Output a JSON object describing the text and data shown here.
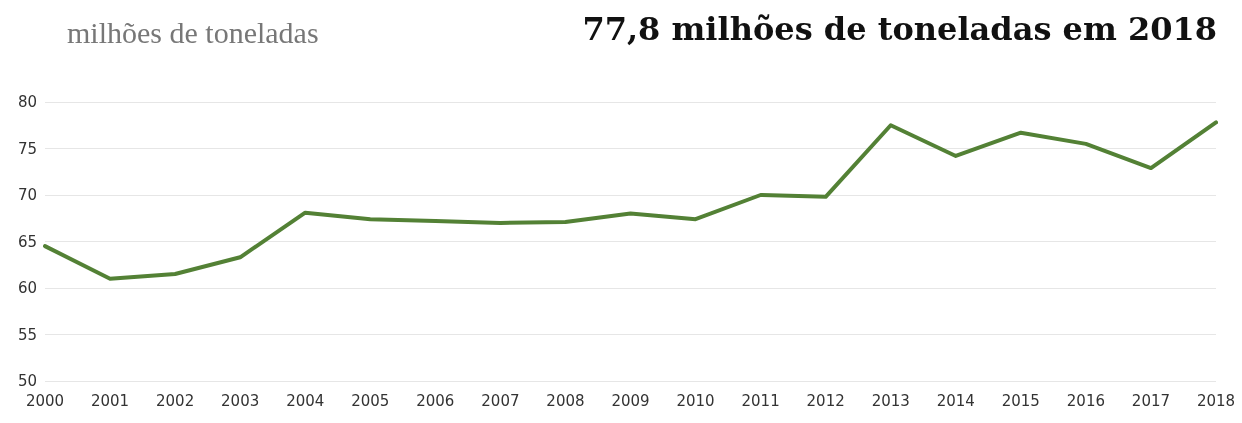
{
  "chart_data": {
    "type": "line",
    "title": "77,8 milhões de toneladas em 2018",
    "ylabel": "milhões de toneladas",
    "categories": [
      "2000",
      "2001",
      "2002",
      "2003",
      "2004",
      "2005",
      "2006",
      "2007",
      "2008",
      "2009",
      "2010",
      "2011",
      "2012",
      "2013",
      "2014",
      "2015",
      "2016",
      "2017",
      "2018"
    ],
    "series": [
      {
        "color": "#538135",
        "values": [
          64.5,
          61.0,
          61.5,
          63.3,
          68.1,
          67.4,
          67.2,
          67.0,
          67.1,
          68.0,
          67.4,
          70.0,
          69.8,
          77.5,
          74.2,
          76.7,
          75.5,
          72.9,
          77.8
        ]
      }
    ],
    "ylim": [
      50,
      80
    ],
    "yticks": [
      50,
      55,
      60,
      65,
      70,
      75,
      80
    ],
    "grid": "y",
    "marker": "none",
    "line_style": "solid"
  }
}
